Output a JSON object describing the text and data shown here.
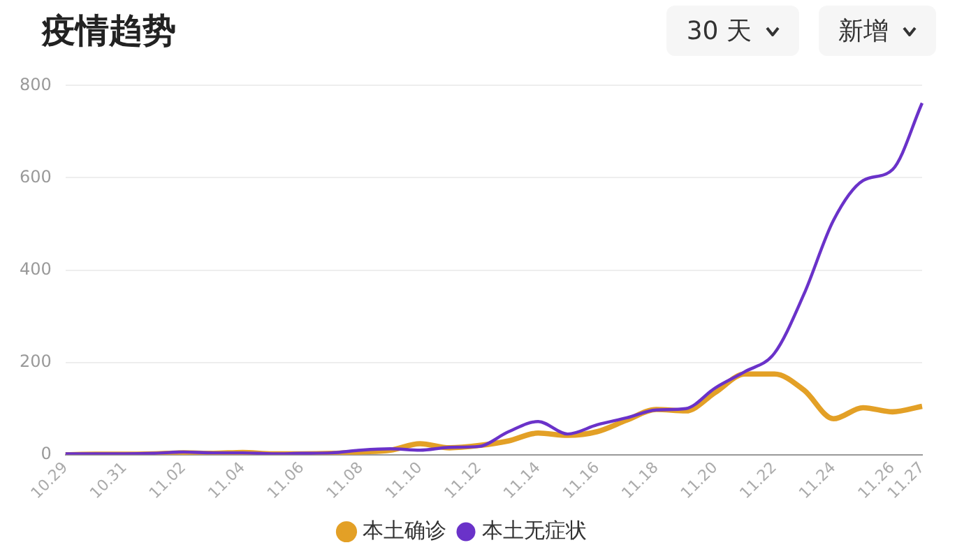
{
  "chart_data": {
    "type": "line",
    "title": "疫情趋势",
    "annotations": [
      "30 天",
      "新增"
    ],
    "categories": [
      "10.29",
      null,
      "10.31",
      null,
      "11.02",
      null,
      "11.04",
      null,
      "11.06",
      null,
      "11.08",
      null,
      "11.10",
      null,
      "11.12",
      null,
      "11.14",
      null,
      "11.16",
      null,
      "11.18",
      null,
      "11.20",
      null,
      "11.22",
      null,
      "11.24",
      null,
      "11.26",
      "11.27"
    ],
    "series": [
      {
        "name": "本土确诊",
        "color": "#e3a026",
        "values": [
          0,
          1,
          1,
          2,
          4,
          3,
          5,
          2,
          2,
          3,
          6,
          10,
          24,
          15,
          20,
          30,
          47,
          42,
          50,
          75,
          98,
          95,
          135,
          175,
          175,
          140,
          78,
          102,
          93,
          105
        ]
      },
      {
        "name": "本土无症状",
        "color": "#6a32c9",
        "values": [
          2,
          2,
          2,
          3,
          6,
          4,
          4,
          2,
          3,
          4,
          10,
          13,
          10,
          16,
          18,
          50,
          72,
          45,
          65,
          80,
          97,
          100,
          145,
          180,
          220,
          348,
          508,
          594,
          618,
          762
        ]
      }
    ],
    "ylim": [
      0,
      800
    ],
    "yticks": [
      0,
      200,
      400,
      600,
      800
    ],
    "grid": "y",
    "legend": "bottom",
    "marker": "none",
    "line_style": "solid"
  }
}
